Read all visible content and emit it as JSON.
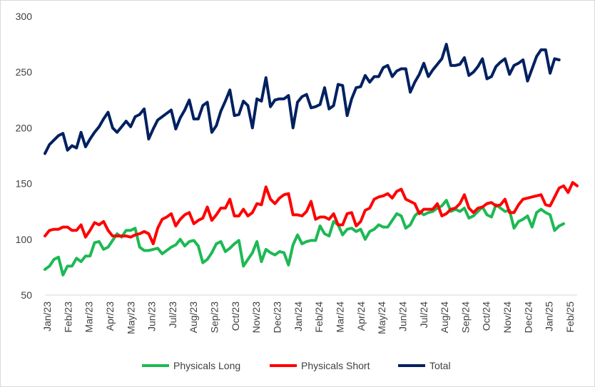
{
  "chart_data": {
    "type": "line",
    "title": "",
    "xlabel": "",
    "ylabel": "",
    "ylim": [
      50,
      300
    ],
    "yticks": [
      50,
      100,
      150,
      200,
      250,
      300
    ],
    "grid": false,
    "legend_position": "bottom",
    "xtick_labels": [
      "Jan/23",
      "Feb/23",
      "Mar/23",
      "Apr/23",
      "May/23",
      "Jun/23",
      "Jul/23",
      "Aug/23",
      "Sep/23",
      "Oct/23",
      "Nov/23",
      "Dec/23",
      "Jan/24",
      "Feb/24",
      "Mar/24",
      "Apr/24",
      "May/24",
      "Jun/24",
      "Jul/24",
      "Aug/24",
      "Sep/24",
      "Oct/24",
      "Nov/24",
      "Dec/24",
      "Jan/25",
      "Feb/25"
    ],
    "series": [
      {
        "name": "Physicals Long",
        "color": "#1db954",
        "values": [
          73,
          76,
          82,
          84,
          68,
          76,
          76,
          83,
          80,
          85,
          85,
          97,
          98,
          91,
          93,
          99,
          105,
          102,
          108,
          108,
          110,
          93,
          90,
          90,
          91,
          92,
          87,
          90,
          93,
          95,
          100,
          94,
          98,
          99,
          94,
          79,
          82,
          88,
          96,
          98,
          89,
          92,
          96,
          99,
          76,
          82,
          88,
          98,
          80,
          91,
          88,
          86,
          89,
          88,
          77,
          95,
          104,
          96,
          98,
          99,
          99,
          112,
          105,
          103,
          116,
          113,
          104,
          109,
          110,
          107,
          109,
          100,
          107,
          109,
          113,
          111,
          111,
          117,
          123,
          121,
          110,
          113,
          121,
          125,
          122,
          124,
          125,
          128,
          130,
          135,
          125,
          127,
          125,
          128,
          119,
          121,
          125,
          129,
          122,
          120,
          131,
          128,
          125,
          126,
          110,
          116,
          118,
          121,
          111,
          124,
          127,
          124,
          122,
          108,
          112,
          114
        ]
      },
      {
        "name": "Physicals Short",
        "color": "#ff0000",
        "values": [
          103,
          108,
          109,
          109,
          111,
          111,
          108,
          108,
          113,
          102,
          108,
          115,
          113,
          116,
          108,
          103,
          103,
          103,
          103,
          102,
          104,
          105,
          107,
          105,
          96,
          110,
          118,
          120,
          123,
          112,
          118,
          122,
          124,
          114,
          117,
          119,
          129,
          117,
          122,
          128,
          128,
          136,
          121,
          121,
          127,
          121,
          124,
          132,
          131,
          147,
          136,
          132,
          137,
          140,
          141,
          122,
          122,
          121,
          125,
          134,
          118,
          120,
          120,
          118,
          123,
          113,
          113,
          123,
          124,
          112,
          116,
          126,
          128,
          136,
          138,
          139,
          141,
          137,
          143,
          145,
          136,
          134,
          132,
          123,
          127,
          127,
          127,
          132,
          121,
          123,
          127,
          128,
          132,
          140,
          128,
          124,
          128,
          129,
          132,
          133,
          130,
          131,
          136,
          124,
          124,
          131,
          136,
          137,
          138,
          139,
          140,
          131,
          130,
          138,
          146,
          148,
          142,
          151,
          148
        ]
      },
      {
        "name": "Total",
        "color": "#002060",
        "values": [
          177,
          185,
          189,
          193,
          195,
          180,
          184,
          182,
          196,
          183,
          190,
          196,
          201,
          208,
          214,
          200,
          196,
          201,
          206,
          201,
          210,
          212,
          217,
          190,
          199,
          207,
          210,
          213,
          216,
          199,
          209,
          216,
          225,
          208,
          208,
          220,
          223,
          196,
          202,
          215,
          224,
          234,
          211,
          212,
          224,
          220,
          200,
          226,
          224,
          245,
          219,
          225,
          226,
          226,
          229,
          200,
          223,
          228,
          230,
          218,
          219,
          221,
          236,
          217,
          220,
          239,
          238,
          211,
          226,
          236,
          237,
          247,
          241,
          246,
          246,
          254,
          256,
          246,
          251,
          253,
          253,
          232,
          241,
          248,
          258,
          246,
          252,
          257,
          262,
          275,
          256,
          256,
          257,
          263,
          247,
          250,
          255,
          262,
          244,
          246,
          255,
          259,
          262,
          248,
          256,
          258,
          261,
          242,
          253,
          264,
          270,
          270,
          249,
          262,
          261
        ]
      }
    ]
  }
}
